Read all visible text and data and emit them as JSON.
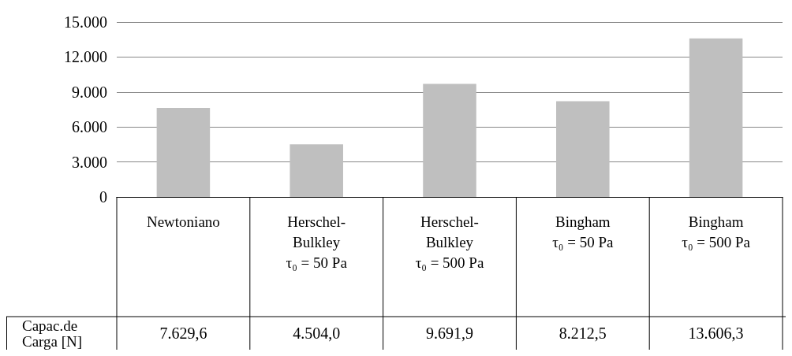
{
  "chart_data": {
    "type": "bar",
    "categories": [
      "Newtoniano",
      "Herschel-\nBulkley\nτ₀ = 50 Pa",
      "Herschel-\nBulkley\nτ₀ = 500 Pa",
      "Bingham\nτ₀ = 50 Pa",
      "Bingham\nτ₀ = 500 Pa"
    ],
    "values": [
      7629.6,
      4504.0,
      9691.9,
      8212.5,
      13606.3
    ],
    "value_labels": [
      "7.629,6",
      "4.504,0",
      "9.691,9",
      "8.212,5",
      "13.606,3"
    ],
    "color": "#bfbfbf",
    "ylim": [
      0,
      15000
    ],
    "yticks": [
      {
        "value": 0,
        "label": "0"
      },
      {
        "value": 3000,
        "label": "3.000"
      },
      {
        "value": 6000,
        "label": "6.000"
      },
      {
        "value": 9000,
        "label": "9.000"
      },
      {
        "value": 12000,
        "label": "12.000"
      },
      {
        "value": 15000,
        "label": "15.000"
      }
    ],
    "grid": "y",
    "annotations": [
      "Capac.de\nCarga [N]"
    ]
  }
}
